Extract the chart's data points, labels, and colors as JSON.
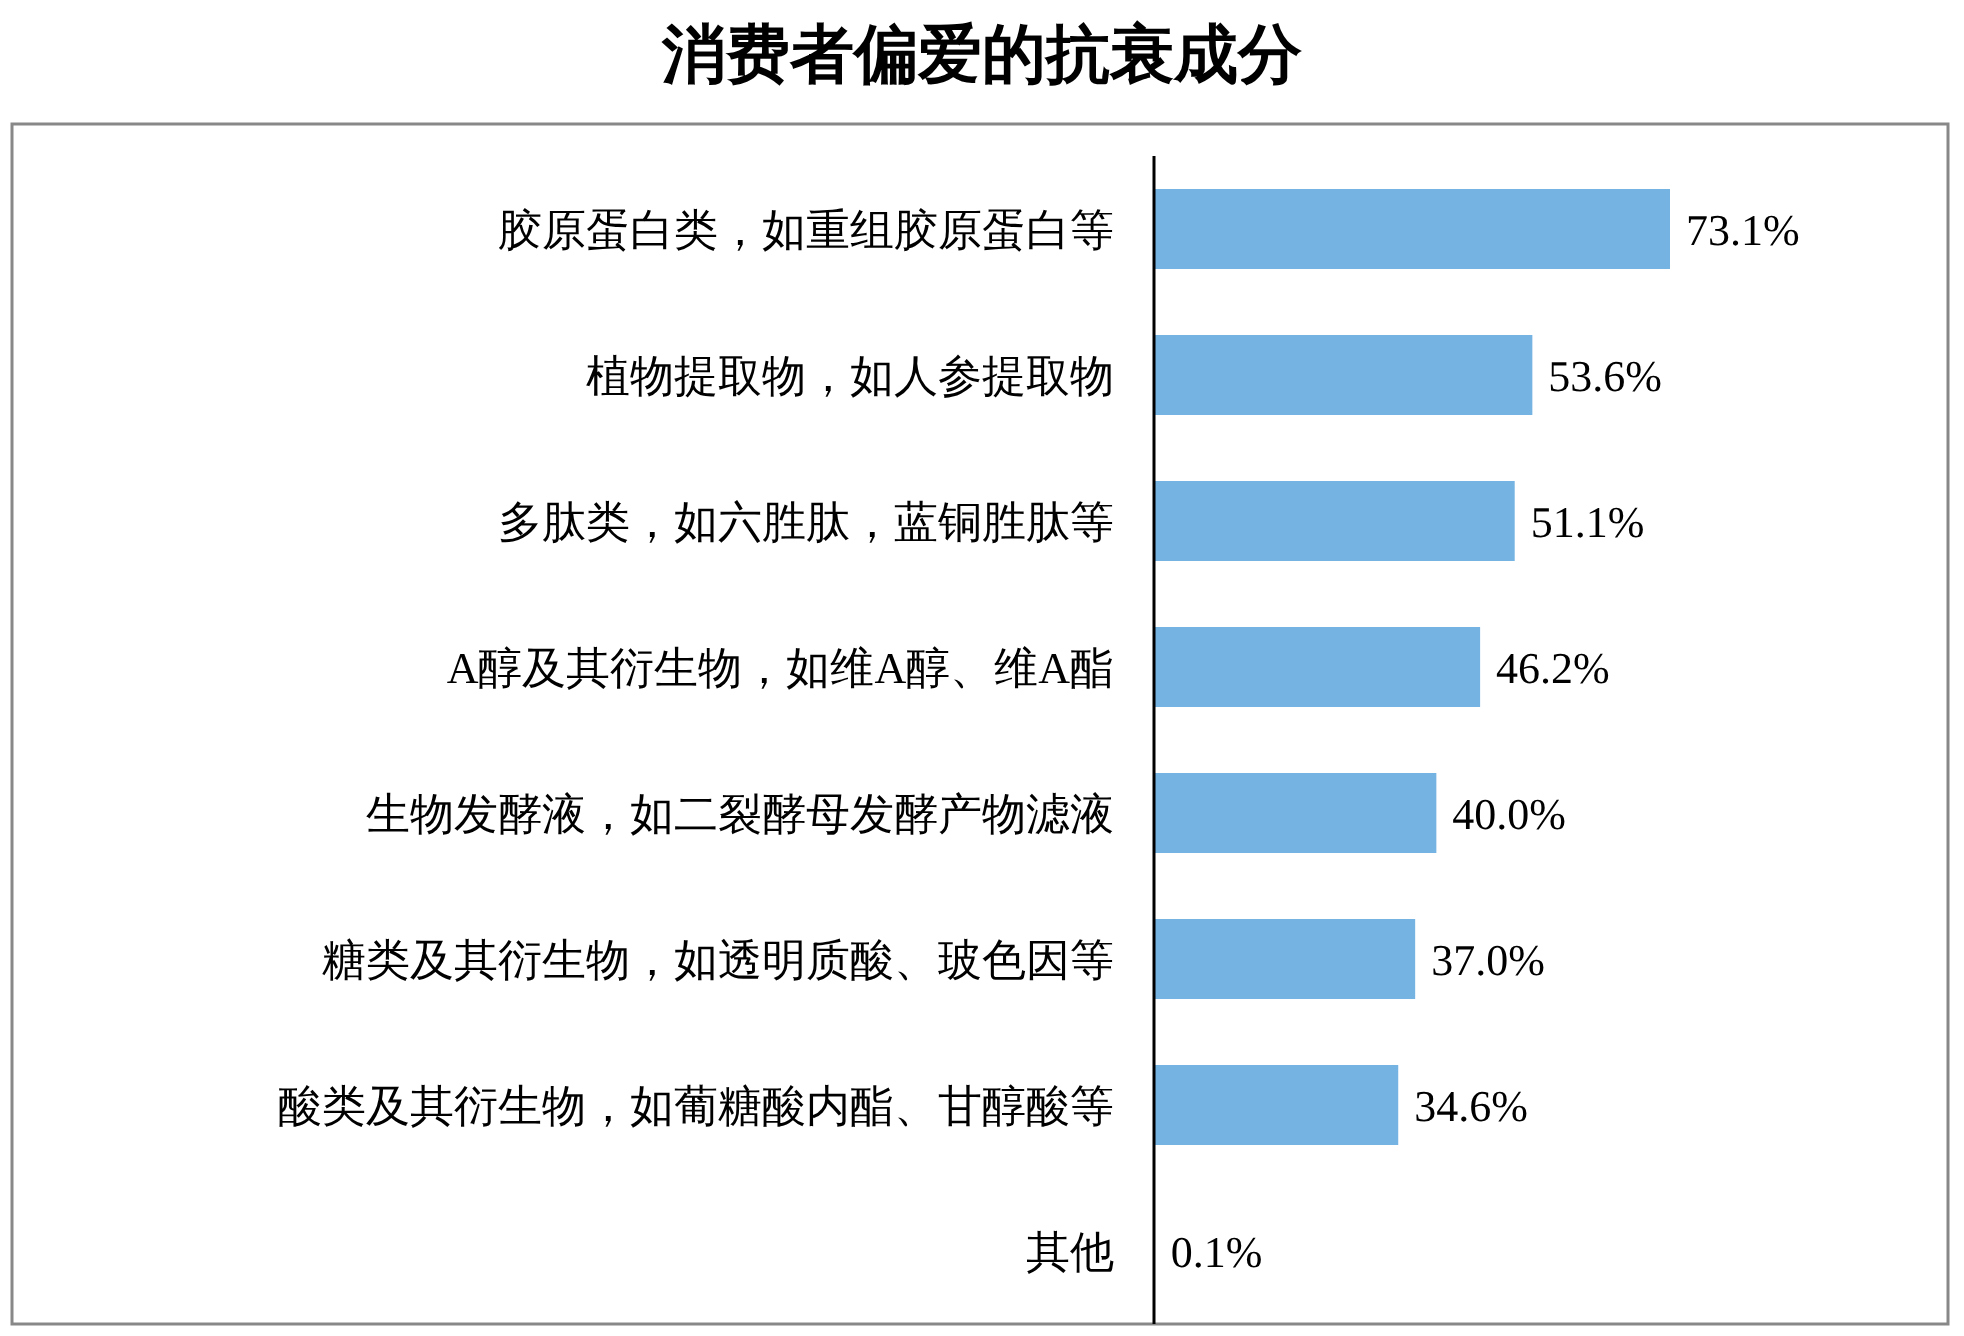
{
  "chart_data": {
    "type": "bar",
    "orientation": "horizontal",
    "title": "消费者偏爱的抗衰成分",
    "categories": [
      "胶原蛋白类，如重组胶原蛋白等",
      "植物提取物，如人参提取物",
      "多肽类，如六胜肽，蓝铜胜肽等",
      "A醇及其衍生物，如维A醇、维A酯",
      "生物发酵液，如二裂酵母发酵产物滤液",
      "糖类及其衍生物，如透明质酸、玻色因等",
      "酸类及其衍生物，如葡糖酸内酯、甘醇酸等",
      "其他"
    ],
    "values": [
      73.1,
      53.6,
      51.1,
      46.2,
      40.0,
      37.0,
      34.6,
      0.1
    ],
    "value_labels": [
      "73.1%",
      "53.6%",
      "51.1%",
      "46.2%",
      "40.0%",
      "37.0%",
      "34.6%",
      "0.1%"
    ],
    "color": "#75b3e3"
  }
}
